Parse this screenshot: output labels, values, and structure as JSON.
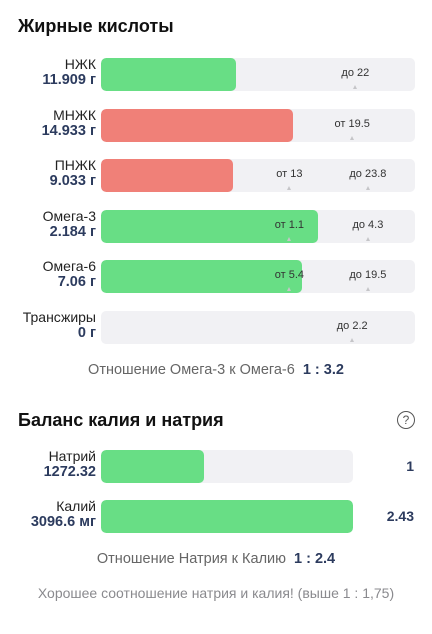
{
  "fatty_acids": {
    "title": "Жирные кислоты",
    "rows": [
      {
        "name": "НЖК",
        "value": "11.909 г",
        "color": "green",
        "fill": 0.43,
        "marks": [
          {
            "text": "до 22",
            "pos": 0.81
          }
        ]
      },
      {
        "name": "МНЖК",
        "value": "14.933 г",
        "color": "red",
        "fill": 0.61,
        "marks": [
          {
            "text": "от 19.5",
            "pos": 0.8
          }
        ]
      },
      {
        "name": "ПНЖК",
        "value": "9.033 г",
        "color": "red",
        "fill": 0.42,
        "marks": [
          {
            "text": "от 13",
            "pos": 0.6
          },
          {
            "text": "до 23.8",
            "pos": 0.85
          }
        ]
      },
      {
        "name": "Омега-3",
        "value": "2.184 г",
        "color": "green",
        "fill": 0.69,
        "marks": [
          {
            "text": "от 1.1",
            "pos": 0.6
          },
          {
            "text": "до 4.3",
            "pos": 0.85
          }
        ]
      },
      {
        "name": "Омега-6",
        "value": "7.06 г",
        "color": "green",
        "fill": 0.64,
        "marks": [
          {
            "text": "от 5.4",
            "pos": 0.6
          },
          {
            "text": "до 19.5",
            "pos": 0.85
          }
        ]
      },
      {
        "name": "Трансжиры",
        "value": "0 г",
        "color": "green",
        "fill": 0.0,
        "marks": [
          {
            "text": "до 2.2",
            "pos": 0.8
          }
        ]
      }
    ],
    "ratio_label": "Отношение Омега-3 к Омега-6",
    "ratio_value": "1 : 3.2"
  },
  "balance": {
    "title": "Баланс калия и натрия",
    "help_icon": "?",
    "rows": [
      {
        "name": "Натрий",
        "value": "1272.32",
        "color": "green",
        "fill": 0.41,
        "side": "1"
      },
      {
        "name": "Калий",
        "value": "3096.6 мг",
        "color": "green",
        "fill": 1.0,
        "side": "2.43"
      }
    ],
    "ratio_label": "Отношение Натрия к Калию",
    "ratio_value": "1 : 2.4",
    "note": "Хорошее соотношение натрия и калия! (выше 1 : 1,75)"
  }
}
